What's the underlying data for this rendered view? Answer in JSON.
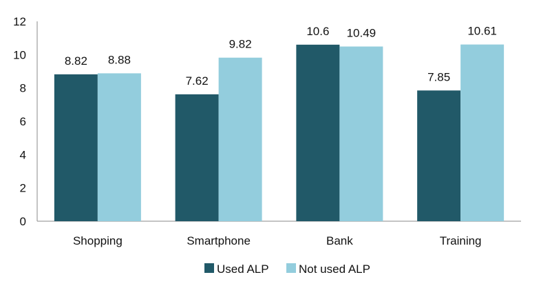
{
  "chart_data": {
    "type": "bar",
    "title": "",
    "xlabel": "",
    "ylabel": "",
    "categories": [
      "Shopping",
      "Smartphone",
      "Bank",
      "Training"
    ],
    "series": [
      {
        "name": "Used ALP",
        "values": [
          8.82,
          7.62,
          10.6,
          7.85
        ],
        "labels": [
          "8.82",
          "7.62",
          "10.6",
          "7.85"
        ],
        "color": "#215968"
      },
      {
        "name": "Not used ALP",
        "values": [
          8.88,
          9.82,
          10.49,
          10.61
        ],
        "labels": [
          "8.88",
          "9.82",
          "10.49",
          "10.61"
        ],
        "color": "#93CDDD"
      }
    ],
    "ylim": [
      0,
      12
    ],
    "yticks": [
      "0",
      "2",
      "4",
      "6",
      "8",
      "10",
      "12"
    ],
    "grid": false,
    "legend": "bottom"
  }
}
